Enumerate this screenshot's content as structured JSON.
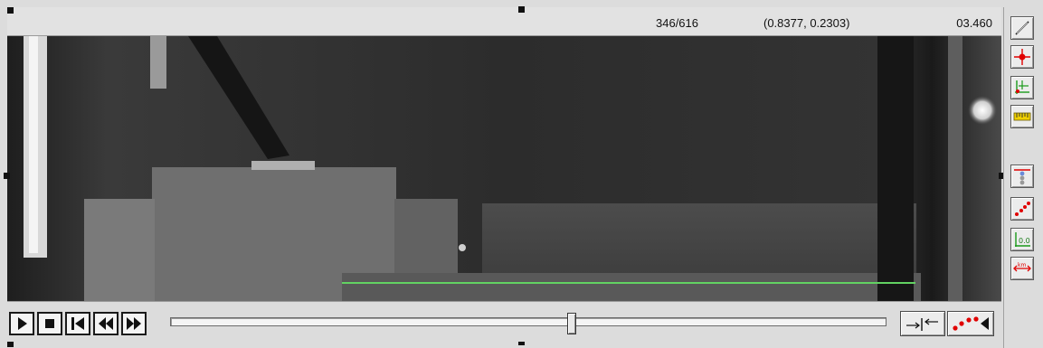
{
  "readouts": {
    "frame_counter": "346/616",
    "coordinates": "(0.8377, 0.2303)",
    "time": "03.460"
  },
  "playback": {
    "current_frame": 346,
    "total_frames": 616,
    "buttons": [
      "play-icon",
      "stop-icon",
      "step-back-icon",
      "rewind-icon",
      "fast-forward-icon"
    ]
  },
  "trajectory_line_color": "#62d262",
  "toolbar_icons": [
    "calibration-stick-icon",
    "point-target-icon",
    "axes-origin-icon",
    "ruler-icon",
    "point-list-icon",
    "trajectory-points-icon",
    "data-table-icon",
    "distance-km-icon"
  ],
  "extra_buttons": [
    "set-range-icon",
    "show-trajectory-icon"
  ]
}
